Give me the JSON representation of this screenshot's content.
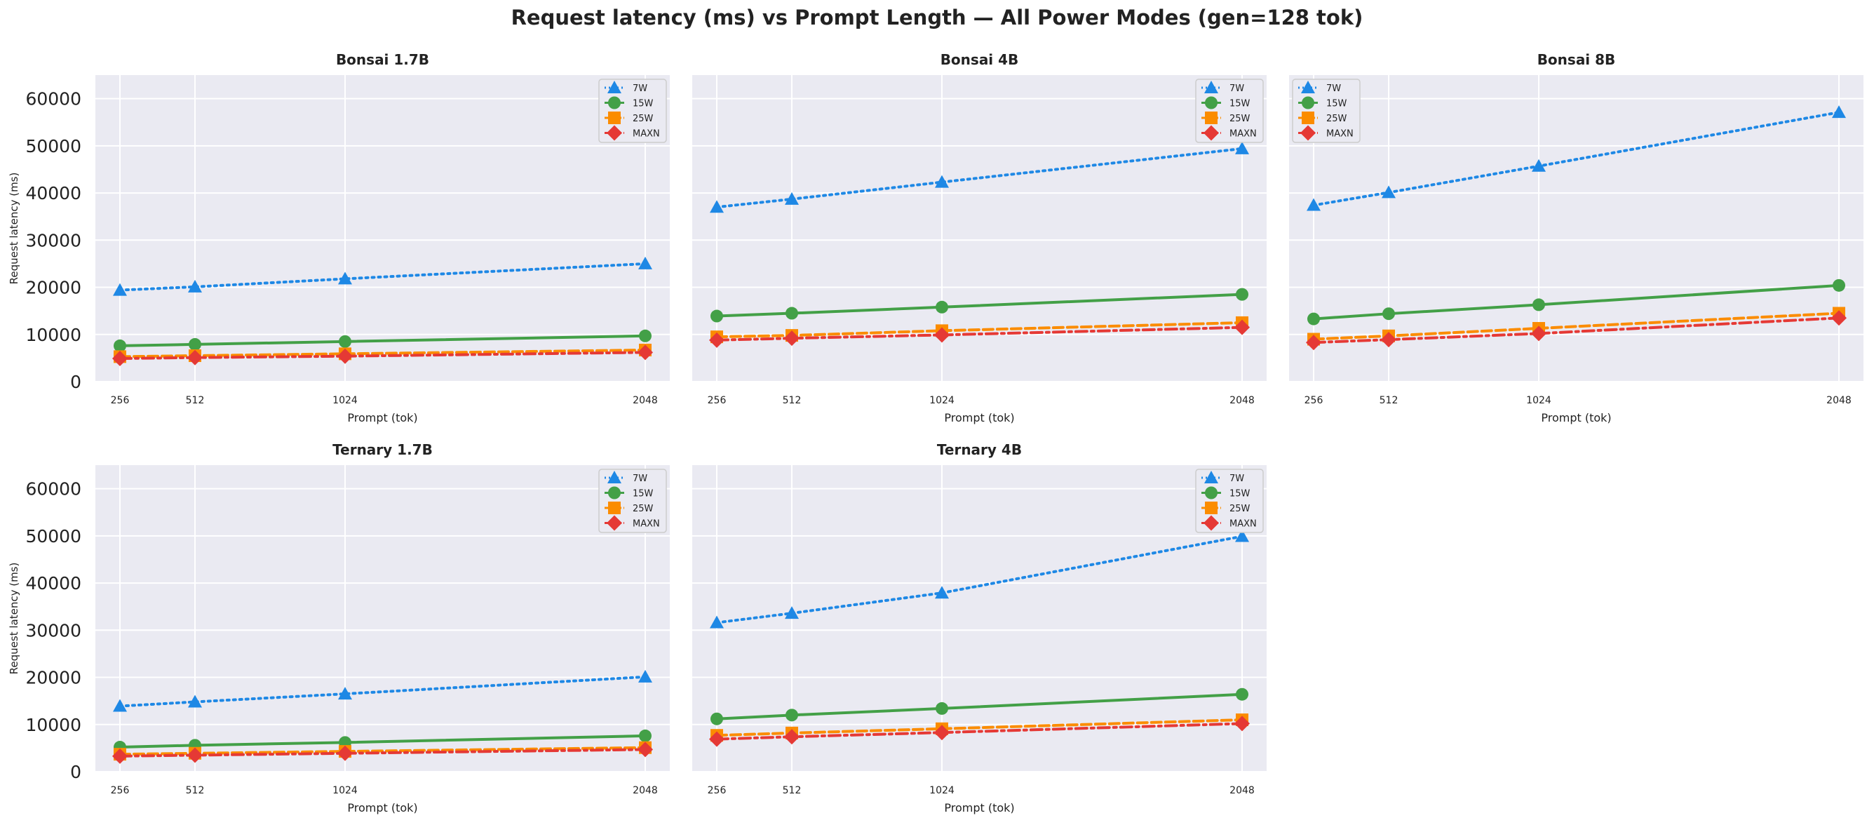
{
  "figure_title": "Request latency (ms) vs Prompt Length — All Power Modes (gen=128 tok)",
  "colors": {
    "7W": "#1e88e5",
    "15W": "#43a047",
    "25W": "#fb8c00",
    "MAXN": "#e53935",
    "panel_bg": "#eaeaf2",
    "grid": "#ffffff"
  },
  "chart_data": [
    {
      "type": "line",
      "title": "Bonsai 1.7B",
      "xlabel": "Prompt (tok)",
      "ylabel": "Request latency (ms)",
      "x": [
        256,
        512,
        1024,
        2048
      ],
      "xticks": [
        "256",
        "512",
        "1024",
        "2048"
      ],
      "ylim": [
        0,
        65000
      ],
      "yticks": [
        0,
        10000,
        20000,
        30000,
        40000,
        50000,
        60000
      ],
      "grid": true,
      "legend_position": "top-right",
      "series": [
        {
          "name": "7W",
          "values": [
            19400,
            20100,
            21800,
            25000
          ]
        },
        {
          "name": "15W",
          "values": [
            7600,
            7900,
            8500,
            9700
          ]
        },
        {
          "name": "25W",
          "values": [
            5300,
            5500,
            5900,
            6700
          ]
        },
        {
          "name": "MAXN",
          "values": [
            4900,
            5100,
            5400,
            6200
          ]
        }
      ]
    },
    {
      "type": "line",
      "title": "Bonsai 4B",
      "xlabel": "Prompt (tok)",
      "ylabel": "",
      "x": [
        256,
        512,
        1024,
        2048
      ],
      "xticks": [
        "256",
        "512",
        "1024",
        "2048"
      ],
      "ylim": [
        0,
        65000
      ],
      "yticks": [
        0,
        10000,
        20000,
        30000,
        40000,
        50000,
        60000
      ],
      "grid": true,
      "legend_position": "top-right",
      "series": [
        {
          "name": "7W",
          "values": [
            37000,
            38700,
            42300,
            49400
          ]
        },
        {
          "name": "15W",
          "values": [
            13900,
            14500,
            15800,
            18500
          ]
        },
        {
          "name": "25W",
          "values": [
            9500,
            9800,
            10800,
            12500
          ]
        },
        {
          "name": "MAXN",
          "values": [
            8800,
            9200,
            9900,
            11500
          ]
        }
      ]
    },
    {
      "type": "line",
      "title": "Bonsai 8B",
      "xlabel": "Prompt (tok)",
      "ylabel": "",
      "x": [
        256,
        512,
        1024,
        2048
      ],
      "xticks": [
        "256",
        "512",
        "1024",
        "2048"
      ],
      "ylim": [
        0,
        65000
      ],
      "yticks": [
        0,
        10000,
        20000,
        30000,
        40000,
        50000,
        60000
      ],
      "grid": true,
      "legend_position": "top-left",
      "series": [
        {
          "name": "7W",
          "values": [
            37400,
            40100,
            45700,
            57100
          ]
        },
        {
          "name": "15W",
          "values": [
            13300,
            14400,
            16300,
            20400
          ]
        },
        {
          "name": "25W",
          "values": [
            9000,
            9700,
            11300,
            14500
          ]
        },
        {
          "name": "MAXN",
          "values": [
            8300,
            8900,
            10200,
            13500
          ]
        }
      ]
    },
    {
      "type": "line",
      "title": "Ternary 1.7B",
      "xlabel": "Prompt (tok)",
      "ylabel": "Request latency (ms)",
      "x": [
        256,
        512,
        1024,
        2048
      ],
      "xticks": [
        "256",
        "512",
        "1024",
        "2048"
      ],
      "ylim": [
        0,
        65000
      ],
      "yticks": [
        0,
        10000,
        20000,
        30000,
        40000,
        50000,
        60000
      ],
      "grid": true,
      "legend_position": "top-right",
      "series": [
        {
          "name": "7W",
          "values": [
            13900,
            14800,
            16500,
            20100
          ]
        },
        {
          "name": "15W",
          "values": [
            5200,
            5600,
            6200,
            7600
          ]
        },
        {
          "name": "25W",
          "values": [
            3700,
            3900,
            4300,
            5100
          ]
        },
        {
          "name": "MAXN",
          "values": [
            3300,
            3500,
            3900,
            4700
          ]
        }
      ]
    },
    {
      "type": "line",
      "title": "Ternary 4B",
      "xlabel": "Prompt (tok)",
      "ylabel": "",
      "x": [
        256,
        512,
        1024,
        2048
      ],
      "xticks": [
        "256",
        "512",
        "1024",
        "2048"
      ],
      "ylim": [
        0,
        65000
      ],
      "yticks": [
        0,
        10000,
        20000,
        30000,
        40000,
        50000,
        60000
      ],
      "grid": true,
      "legend_position": "top-right",
      "series": [
        {
          "name": "7W",
          "values": [
            31600,
            33600,
            37900,
            49900
          ]
        },
        {
          "name": "15W",
          "values": [
            11200,
            12000,
            13400,
            16400
          ]
        },
        {
          "name": "25W",
          "values": [
            7700,
            8200,
            9100,
            11000
          ]
        },
        {
          "name": "MAXN",
          "values": [
            6900,
            7400,
            8300,
            10200
          ]
        }
      ]
    }
  ]
}
